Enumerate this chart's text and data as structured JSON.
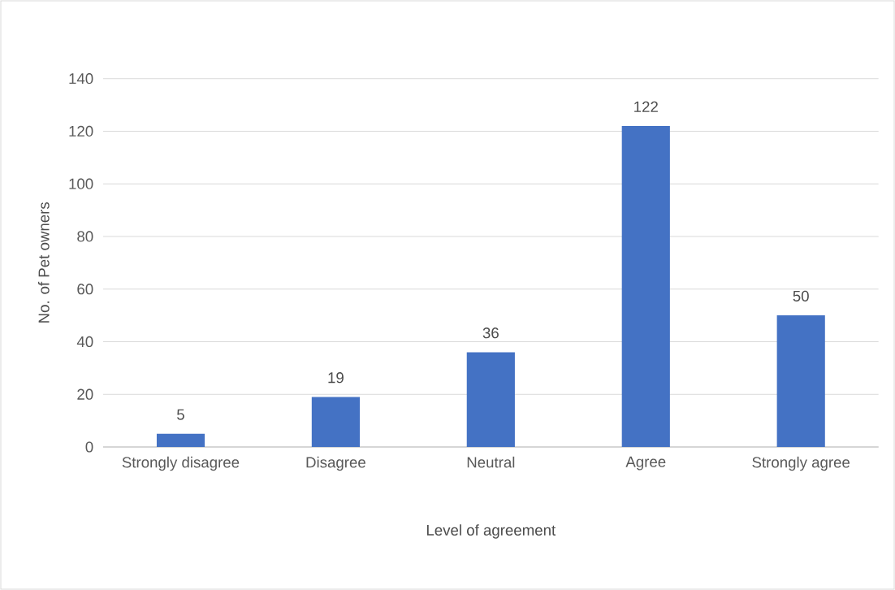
{
  "chart_data": {
    "type": "bar",
    "xlabel": "Level of agreement",
    "ylabel": "No. of Pet owners",
    "categories": [
      "Strongly disagree",
      "Disagree",
      "Neutral",
      "Agree",
      "Strongly agree"
    ],
    "values": [
      5,
      19,
      36,
      122,
      50
    ],
    "color": "#4472c4",
    "ylim": [
      0,
      140
    ],
    "yticks": [
      0,
      20,
      40,
      60,
      80,
      100,
      120,
      140
    ],
    "grid": "y",
    "data_labels": true
  }
}
